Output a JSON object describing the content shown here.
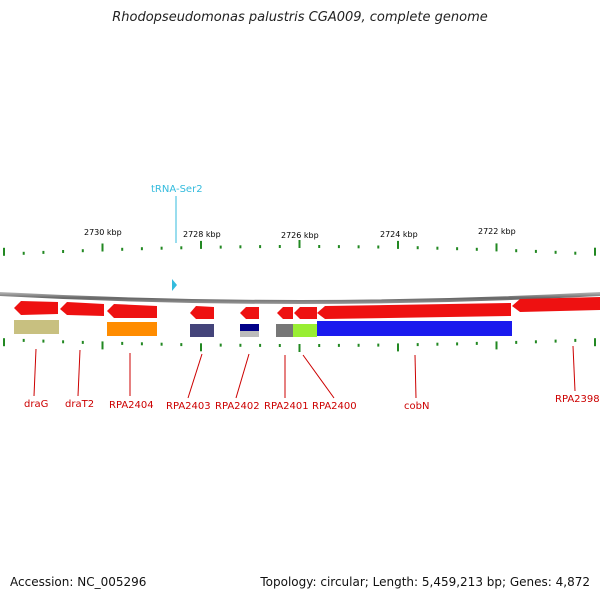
{
  "title": "Rhodopseudomonas palustris CGA009, complete genome",
  "footer": {
    "accession": "Accession: NC_005296",
    "topology": "Topology: circular; Length: 5,459,213 bp; Genes: 4,872"
  },
  "colors": {
    "gene_arrow": "#ee1111",
    "backbone": "#888888",
    "tick": "#228822",
    "gene_label": "#cc0000",
    "trna": "#33bbdd"
  },
  "kbp_labels": [
    "2730 kbp",
    "2728 kbp",
    "2726 kbp",
    "2724 kbp",
    "2722 kbp"
  ],
  "trna": {
    "label": "tRNA-Ser2"
  },
  "genes": [
    {
      "label": "draG",
      "cog_color": "#c8c080"
    },
    {
      "label": "draT2",
      "cog_color": null
    },
    {
      "label": "RPA2404",
      "cog_color": "#ff8c00"
    },
    {
      "label": "RPA2403",
      "cog_color": "#44447a"
    },
    {
      "label": "RPA2402",
      "cog_color": "#000088"
    },
    {
      "label": "RPA2401",
      "cog_color": "#777777"
    },
    {
      "label": "RPA2400",
      "cog_color": "#99ee33"
    },
    {
      "label": "cobN",
      "cog_color": "#1a1aee"
    },
    {
      "label": "RPA2398",
      "cog_color": null
    }
  ]
}
